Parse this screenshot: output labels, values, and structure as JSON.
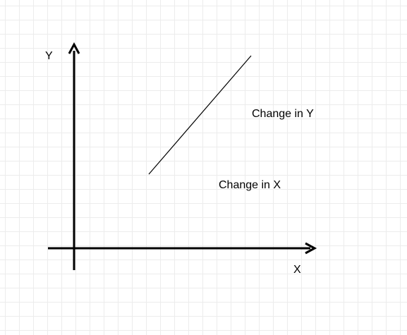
{
  "diagram": {
    "axes": {
      "y_label": "Y",
      "x_label": "X"
    },
    "annotations": {
      "change_in_y": "Change in Y",
      "change_in_x": "Change in X"
    },
    "colors": {
      "stroke": "#000000",
      "grid": "#ececec",
      "background": "#ffffff"
    }
  }
}
